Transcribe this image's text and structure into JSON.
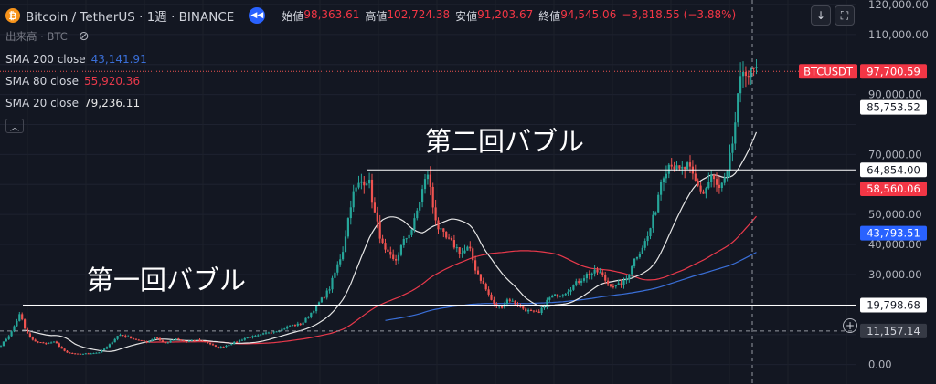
{
  "header": {
    "coin_symbol": "₿",
    "title": "Bitcoin / TetherUS · 1週 · BINANCE",
    "replay_icon": "double-chevron-left-icon",
    "open_label": "始値",
    "open": "98,363.61",
    "high_label": "高値",
    "high": "102,724.38",
    "low_label": "安値",
    "low": "91,203.67",
    "close_label": "終値",
    "close": "94,545.06",
    "change": "−3,818.55 (−3.88%)"
  },
  "volume_label": "出来高 · BTC",
  "indicators": [
    {
      "label": "SMA 200 close",
      "value": "43,141.91",
      "color": "#3a6fd8"
    },
    {
      "label": "SMA 80 close",
      "value": "55,920.36",
      "color": "#e8394b"
    },
    {
      "label": "SMA 20 close",
      "value": "79,236.11",
      "color": "#e6e6e6"
    }
  ],
  "annotations": {
    "first_bubble": "第一回バブル",
    "second_bubble": "第二回バブル"
  },
  "colors": {
    "up": "#26a69a",
    "down": "#ef5350",
    "background": "#131722",
    "sma200": "#3a6fd8",
    "sma80": "#e8394b",
    "sma20": "#e6e6e6"
  },
  "chart_data": {
    "type": "candlestick",
    "symbol": "BTCUSDT",
    "ylim": [
      -6500,
      121500
    ],
    "y_ticks": [
      "0.00",
      "30,000.00",
      "40,000.00",
      "50,000.00",
      "70,000.00",
      "90,000.00",
      "110,000.00",
      "120,000.00"
    ],
    "y_tick_values": [
      0,
      30000,
      40000,
      50000,
      70000,
      90000,
      110000,
      120000
    ],
    "horizontal_levels": [
      19798.68,
      64854.0
    ],
    "price_labels": [
      {
        "text": "BTCUSDT",
        "value": 97700.59,
        "kind": "symbol"
      },
      {
        "text": "97,700.59",
        "value": 97700.59,
        "kind": "last"
      },
      {
        "text": "85,753.52",
        "value": 85753.52,
        "kind": "sma20"
      },
      {
        "text": "64,854.00",
        "value": 64854.0,
        "kind": "level"
      },
      {
        "text": "58,560.06",
        "value": 58560.06,
        "kind": "sma80"
      },
      {
        "text": "43,793.51",
        "value": 43793.51,
        "kind": "sma200"
      },
      {
        "text": "19,798.68",
        "value": 19798.68,
        "kind": "level"
      },
      {
        "text": "11,157.14",
        "value": 11157.14,
        "kind": "crosshair"
      }
    ],
    "last_price": 97700.59,
    "crosshair_price": 11157.14,
    "close_anchors": [
      [
        0,
        6000
      ],
      [
        12,
        10500
      ],
      [
        22,
        17000
      ],
      [
        28,
        11000
      ],
      [
        36,
        8000
      ],
      [
        48,
        7000
      ],
      [
        60,
        7500
      ],
      [
        72,
        4000
      ],
      [
        84,
        3500
      ],
      [
        96,
        3700
      ],
      [
        108,
        4000
      ],
      [
        118,
        6000
      ],
      [
        130,
        10000
      ],
      [
        142,
        9000
      ],
      [
        152,
        8000
      ],
      [
        162,
        7500
      ],
      [
        170,
        9200
      ],
      [
        180,
        7000
      ],
      [
        192,
        8500
      ],
      [
        204,
        7500
      ],
      [
        216,
        8200
      ],
      [
        228,
        7200
      ],
      [
        238,
        5500
      ],
      [
        248,
        6400
      ],
      [
        258,
        7500
      ],
      [
        270,
        9000
      ],
      [
        282,
        9500
      ],
      [
        294,
        10800
      ],
      [
        306,
        11500
      ],
      [
        318,
        13000
      ],
      [
        330,
        13500
      ],
      [
        345,
        19000
      ],
      [
        360,
        25000
      ],
      [
        375,
        38000
      ],
      [
        385,
        56000
      ],
      [
        395,
        61000
      ],
      [
        403,
        62000
      ],
      [
        410,
        50000
      ],
      [
        420,
        38000
      ],
      [
        432,
        34000
      ],
      [
        440,
        40000
      ],
      [
        452,
        46000
      ],
      [
        462,
        58000
      ],
      [
        468,
        64000
      ],
      [
        474,
        52000
      ],
      [
        480,
        45000
      ],
      [
        488,
        42000
      ],
      [
        496,
        40000
      ],
      [
        505,
        37000
      ],
      [
        513,
        39000
      ],
      [
        520,
        32000
      ],
      [
        530,
        26000
      ],
      [
        540,
        20000
      ],
      [
        548,
        19000
      ],
      [
        556,
        22000
      ],
      [
        565,
        20000
      ],
      [
        576,
        18000
      ],
      [
        590,
        17000
      ],
      [
        600,
        22000
      ],
      [
        608,
        23000
      ],
      [
        618,
        24000
      ],
      [
        630,
        27000
      ],
      [
        642,
        30000
      ],
      [
        655,
        31000
      ],
      [
        665,
        27000
      ],
      [
        675,
        26000
      ],
      [
        685,
        28000
      ],
      [
        692,
        34000
      ],
      [
        700,
        38000
      ],
      [
        708,
        42000
      ],
      [
        716,
        50000
      ],
      [
        724,
        63000
      ],
      [
        734,
        68000
      ],
      [
        742,
        64000
      ],
      [
        752,
        66000
      ],
      [
        762,
        60000
      ],
      [
        770,
        57000
      ],
      [
        778,
        63000
      ],
      [
        786,
        58000
      ],
      [
        795,
        62000
      ],
      [
        802,
        75000
      ],
      [
        808,
        90000
      ],
      [
        814,
        100000
      ],
      [
        820,
        96000
      ],
      [
        826,
        98000
      ],
      [
        830,
        97700
      ]
    ]
  }
}
